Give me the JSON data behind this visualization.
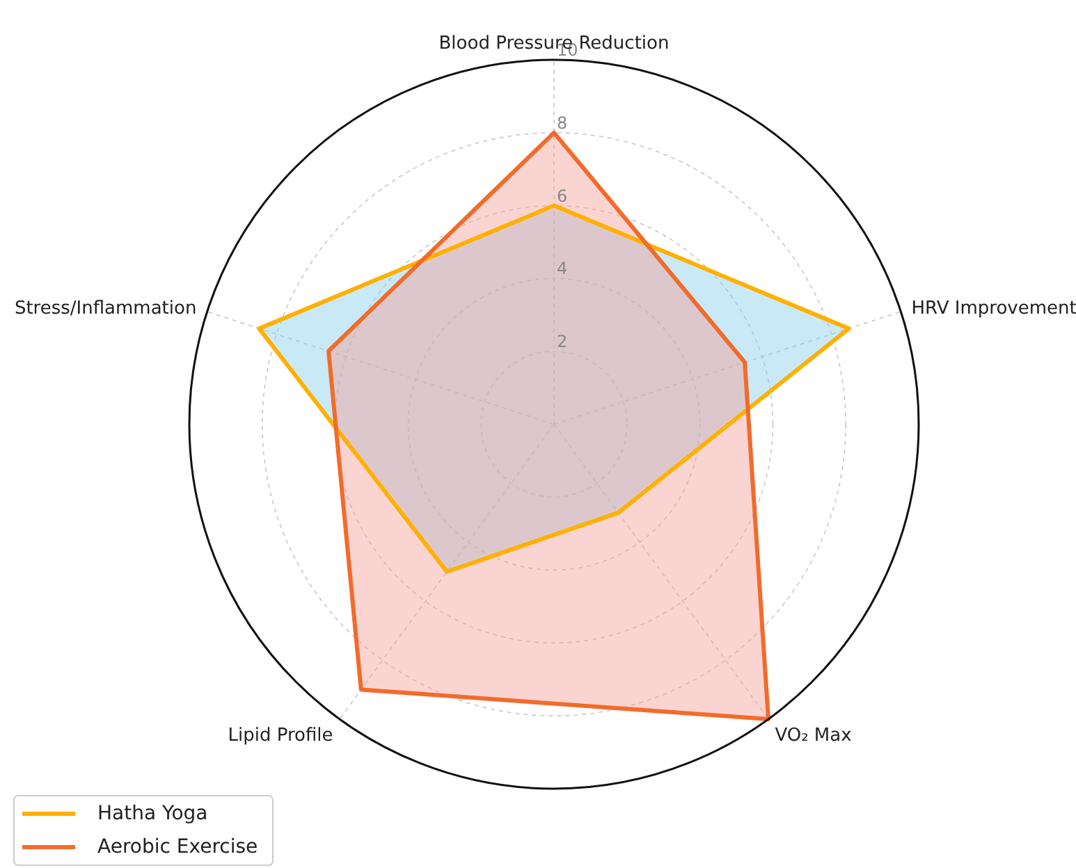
{
  "chart_data": {
    "type": "radar",
    "categories": [
      "Blood Pressure Reduction",
      "HRV Improvement",
      "VO₂ Max",
      "Lipid Profile",
      "Stress/Inflammation"
    ],
    "series": [
      {
        "name": "Hatha Yoga",
        "color": "#ffb000",
        "values": [
          6,
          8.5,
          3,
          5,
          8.5
        ]
      },
      {
        "name": "Aerobic Exercise",
        "color": "#f26b2a",
        "values": [
          8,
          5.5,
          10,
          9,
          6.5
        ]
      }
    ],
    "ylim": [
      0,
      10
    ],
    "yticks": [
      2,
      4,
      6,
      8,
      10
    ],
    "grid": true,
    "legend": "bottom left"
  }
}
